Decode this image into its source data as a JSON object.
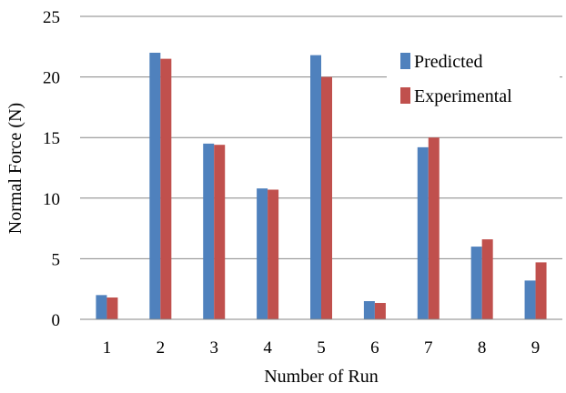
{
  "chart_data": {
    "type": "bar",
    "title": "",
    "xlabel": "Number of Run",
    "ylabel": "Normal Force (N)",
    "categories": [
      "1",
      "2",
      "3",
      "4",
      "5",
      "6",
      "7",
      "8",
      "9"
    ],
    "ylim": [
      0,
      25
    ],
    "yticks": [
      "0",
      "5",
      "10",
      "15",
      "20",
      "25"
    ],
    "grid": true,
    "legend_position": "top-right",
    "series": [
      {
        "name": "Predicted",
        "color": "#4F81BD",
        "values": [
          2.0,
          22.0,
          14.5,
          10.8,
          21.8,
          1.5,
          14.2,
          6.0,
          3.2
        ]
      },
      {
        "name": "Experimental",
        "color": "#C0504D",
        "values": [
          1.8,
          21.5,
          14.4,
          10.7,
          20.0,
          1.35,
          15.0,
          6.6,
          4.7
        ]
      }
    ]
  }
}
